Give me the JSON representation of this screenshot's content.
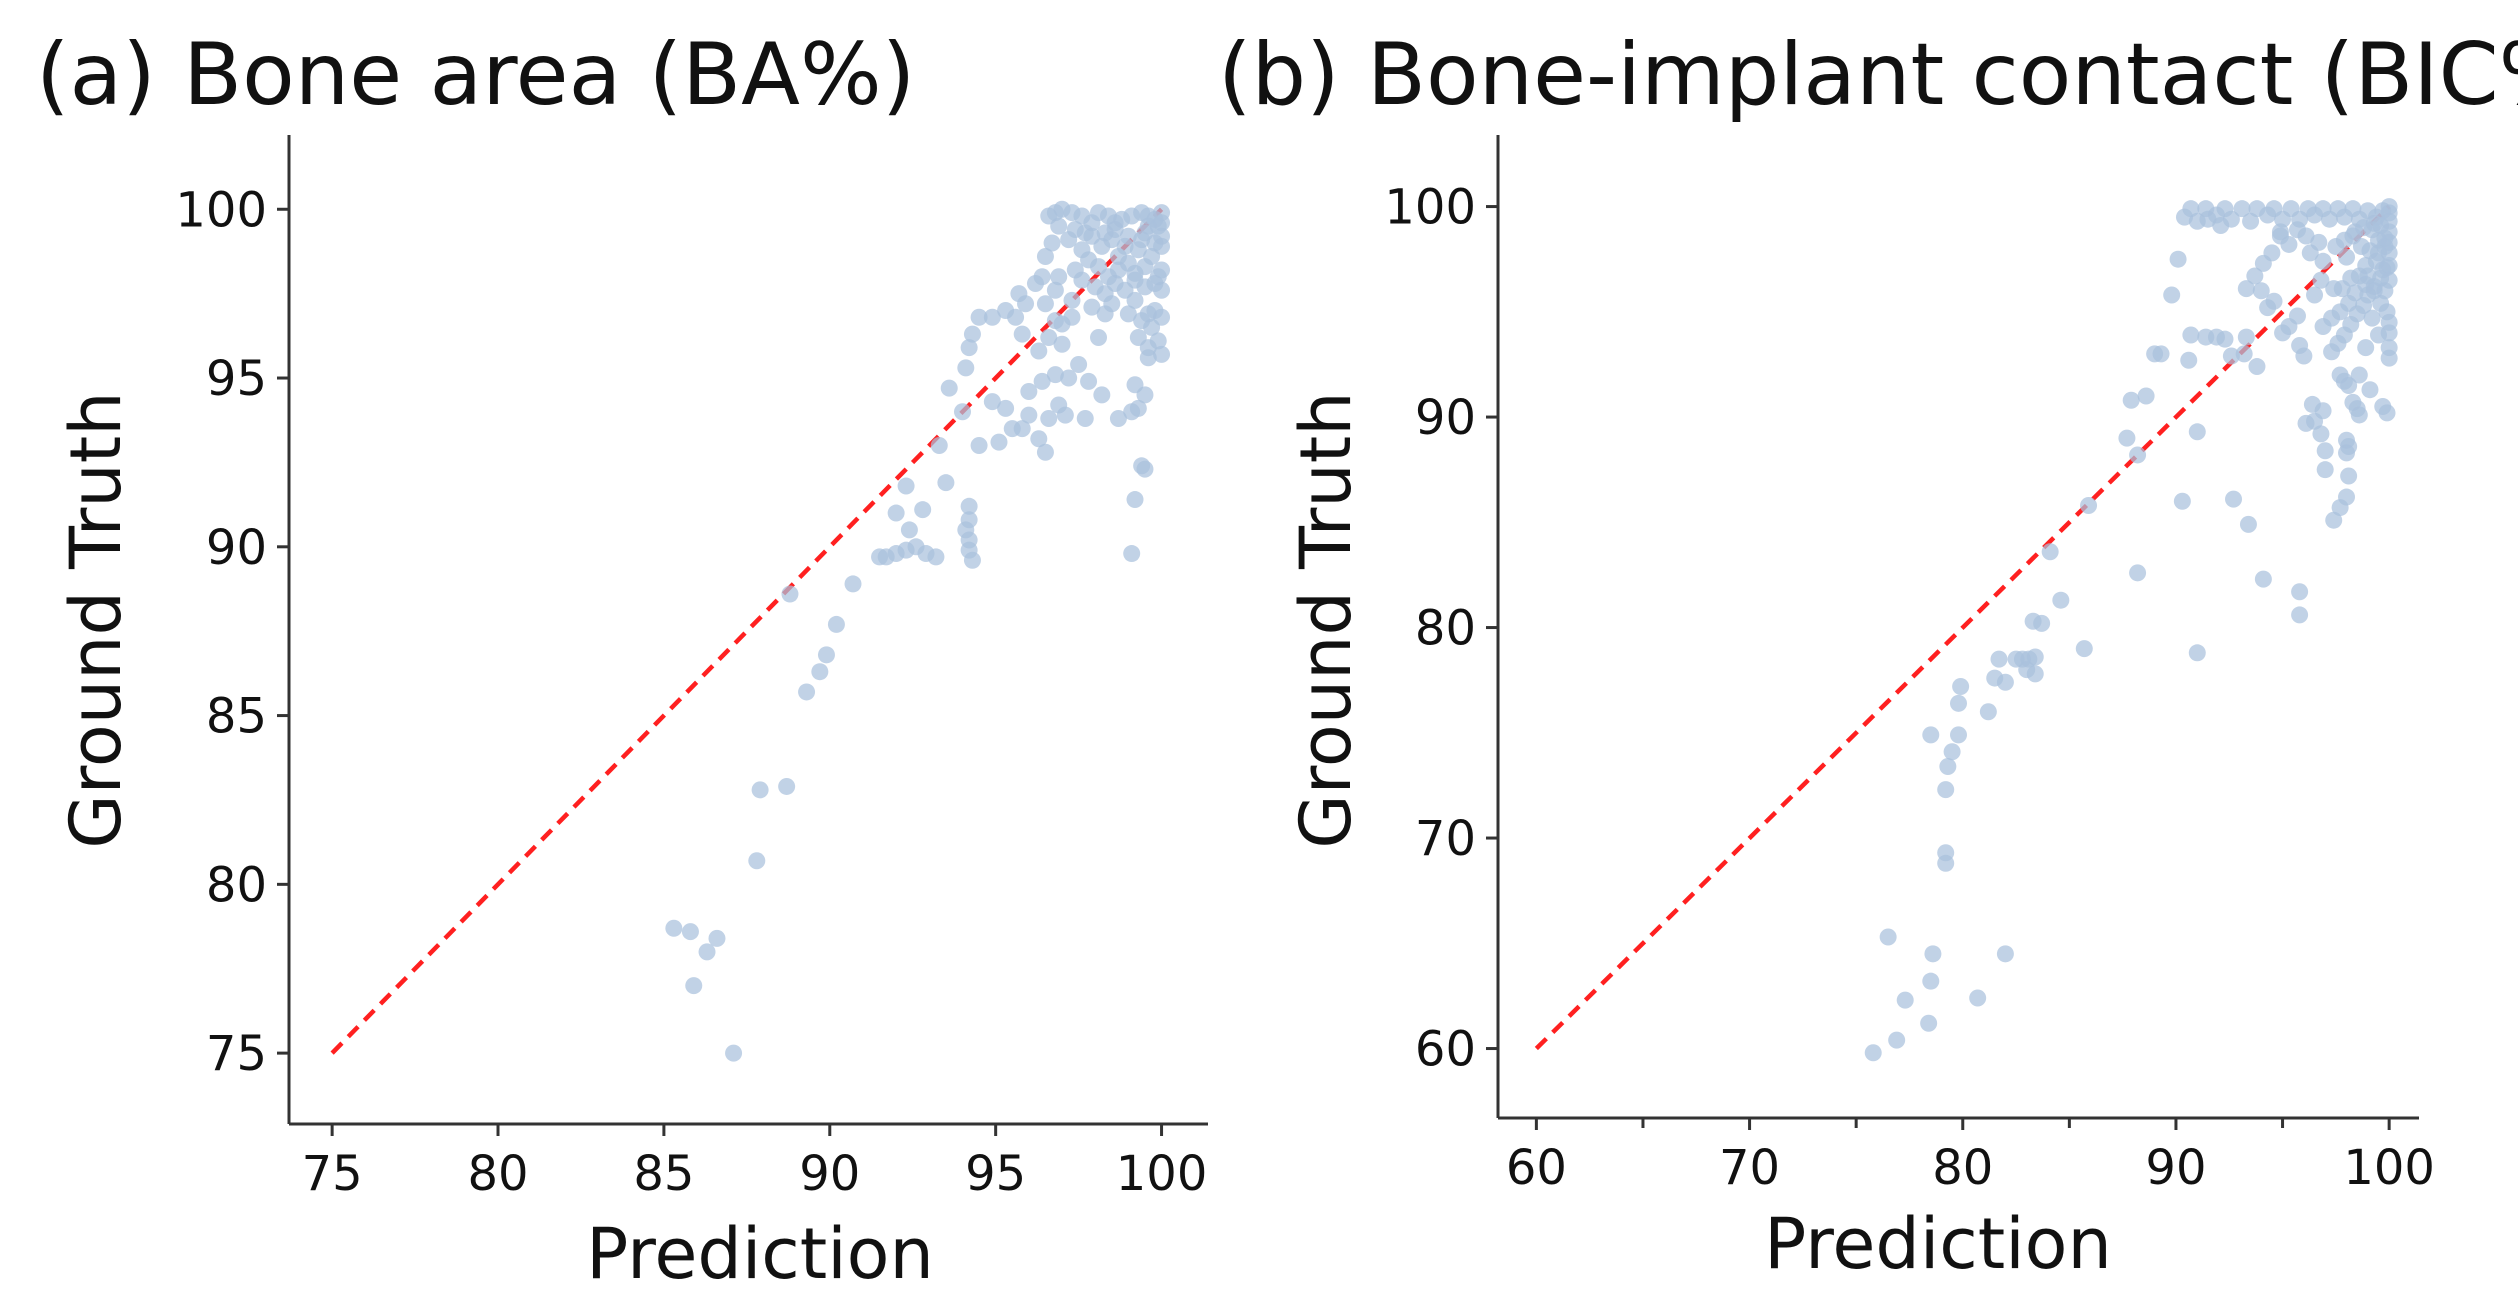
{
  "chart_data": [
    {
      "type": "scatter",
      "title": "(a) Bone area (BA%)",
      "xlabel": "Prediction",
      "ylabel": "Ground Truth",
      "xlim": [
        73.7,
        101.4
      ],
      "ylim": [
        72.9,
        102.2
      ],
      "xticks": [
        75,
        80,
        85,
        90,
        95,
        100
      ],
      "yticks": [
        75,
        80,
        85,
        90,
        95,
        100
      ],
      "reference_line": {
        "from": [
          75,
          75
        ],
        "to": [
          100,
          100
        ],
        "style": "dashed",
        "color": "#ff2020"
      },
      "point_color": "#a9c1dd",
      "points": [
        [
          85.3,
          78.7
        ],
        [
          85.8,
          78.6
        ],
        [
          86.3,
          78.0
        ],
        [
          86.6,
          78.4
        ],
        [
          85.9,
          77.0
        ],
        [
          87.1,
          75.0
        ],
        [
          87.8,
          80.7
        ],
        [
          87.9,
          82.8
        ],
        [
          88.7,
          82.9
        ],
        [
          88.8,
          88.6
        ],
        [
          89.3,
          85.7
        ],
        [
          89.7,
          86.3
        ],
        [
          89.9,
          86.8
        ],
        [
          90.2,
          87.7
        ],
        [
          90.7,
          88.9
        ],
        [
          91.5,
          89.7
        ],
        [
          91.7,
          89.7
        ],
        [
          92.0,
          89.8
        ],
        [
          92.3,
          89.9
        ],
        [
          92.6,
          90.0
        ],
        [
          92.9,
          89.8
        ],
        [
          93.2,
          89.7
        ],
        [
          92.4,
          90.5
        ],
        [
          92.0,
          91.0
        ],
        [
          92.3,
          91.8
        ],
        [
          92.8,
          91.1
        ],
        [
          93.5,
          91.9
        ],
        [
          93.3,
          93.0
        ],
        [
          93.6,
          94.7
        ],
        [
          94.0,
          94.0
        ],
        [
          94.1,
          95.3
        ],
        [
          94.2,
          95.9
        ],
        [
          94.3,
          96.3
        ],
        [
          94.5,
          93.0
        ],
        [
          94.2,
          90.8
        ],
        [
          94.1,
          90.5
        ],
        [
          94.2,
          90.2
        ],
        [
          94.2,
          89.9
        ],
        [
          94.3,
          89.6
        ],
        [
          94.2,
          91.2
        ],
        [
          94.9,
          94.3
        ],
        [
          95.1,
          93.1
        ],
        [
          95.3,
          94.1
        ],
        [
          95.5,
          93.5
        ],
        [
          95.8,
          93.5
        ],
        [
          96.0,
          93.9
        ],
        [
          96.3,
          93.2
        ],
        [
          96.5,
          92.8
        ],
        [
          96.0,
          94.6
        ],
        [
          96.4,
          94.9
        ],
        [
          96.8,
          95.1
        ],
        [
          96.9,
          94.2
        ],
        [
          96.6,
          93.8
        ],
        [
          97.1,
          93.9
        ],
        [
          97.7,
          93.8
        ],
        [
          98.2,
          94.5
        ],
        [
          98.7,
          93.8
        ],
        [
          99.1,
          94.0
        ],
        [
          99.3,
          94.1
        ],
        [
          99.2,
          94.8
        ],
        [
          99.5,
          94.5
        ],
        [
          99.6,
          95.6
        ],
        [
          99.4,
          92.4
        ],
        [
          99.5,
          92.3
        ],
        [
          99.2,
          91.4
        ],
        [
          99.1,
          89.8
        ],
        [
          94.5,
          96.8
        ],
        [
          94.9,
          96.8
        ],
        [
          95.3,
          97.0
        ],
        [
          95.6,
          96.8
        ],
        [
          95.7,
          97.5
        ],
        [
          95.9,
          97.2
        ],
        [
          96.2,
          97.8
        ],
        [
          96.4,
          98.0
        ],
        [
          96.5,
          97.2
        ],
        [
          96.8,
          96.7
        ],
        [
          96.6,
          96.2
        ],
        [
          95.8,
          96.3
        ],
        [
          96.3,
          95.8
        ],
        [
          97.0,
          96.0
        ],
        [
          97.0,
          96.6
        ],
        [
          97.3,
          96.8
        ],
        [
          97.3,
          97.3
        ],
        [
          96.8,
          97.6
        ],
        [
          96.9,
          98.0
        ],
        [
          96.5,
          98.6
        ],
        [
          96.7,
          99.0
        ],
        [
          96.9,
          99.5
        ],
        [
          96.6,
          99.8
        ],
        [
          96.8,
          99.9
        ],
        [
          97.0,
          100.0
        ],
        [
          97.3,
          99.9
        ],
        [
          97.6,
          99.8
        ],
        [
          97.4,
          99.4
        ],
        [
          97.9,
          99.6
        ],
        [
          98.1,
          99.9
        ],
        [
          98.4,
          99.8
        ],
        [
          98.6,
          99.4
        ],
        [
          98.8,
          99.7
        ],
        [
          99.1,
          99.8
        ],
        [
          99.4,
          99.9
        ],
        [
          99.6,
          99.8
        ],
        [
          99.8,
          99.7
        ],
        [
          100.0,
          99.6
        ],
        [
          97.2,
          99.1
        ],
        [
          97.6,
          98.8
        ],
        [
          97.9,
          99.2
        ],
        [
          98.2,
          98.9
        ],
        [
          98.5,
          99.1
        ],
        [
          98.7,
          98.6
        ],
        [
          99.0,
          99.2
        ],
        [
          99.3,
          98.8
        ],
        [
          99.5,
          99.3
        ],
        [
          99.8,
          99.0
        ],
        [
          100.0,
          98.9
        ],
        [
          97.4,
          98.2
        ],
        [
          97.8,
          98.5
        ],
        [
          98.1,
          98.3
        ],
        [
          98.4,
          98.0
        ],
        [
          98.7,
          98.2
        ],
        [
          99.0,
          98.4
        ],
        [
          99.2,
          98.1
        ],
        [
          99.5,
          98.3
        ],
        [
          99.7,
          98.6
        ],
        [
          100.0,
          98.2
        ],
        [
          99.9,
          98.0
        ],
        [
          97.6,
          97.9
        ],
        [
          98.0,
          97.7
        ],
        [
          98.3,
          97.5
        ],
        [
          98.6,
          97.8
        ],
        [
          98.9,
          97.6
        ],
        [
          99.2,
          97.9
        ],
        [
          99.5,
          97.7
        ],
        [
          99.8,
          97.8
        ],
        [
          100.0,
          97.6
        ],
        [
          97.9,
          97.1
        ],
        [
          98.3,
          96.9
        ],
        [
          98.5,
          97.2
        ],
        [
          99.0,
          96.9
        ],
        [
          99.2,
          97.3
        ],
        [
          99.4,
          96.7
        ],
        [
          99.6,
          96.9
        ],
        [
          99.8,
          97.0
        ],
        [
          100.0,
          96.8
        ],
        [
          99.3,
          96.2
        ],
        [
          99.6,
          95.9
        ],
        [
          99.9,
          96.1
        ],
        [
          100.0,
          95.7
        ],
        [
          99.7,
          96.5
        ],
        [
          98.1,
          96.2
        ],
        [
          97.5,
          95.4
        ],
        [
          97.8,
          94.9
        ],
        [
          97.2,
          95.0
        ],
        [
          100.0,
          99.9
        ],
        [
          99.9,
          99.5
        ],
        [
          100.0,
          99.2
        ],
        [
          99.6,
          99.5
        ],
        [
          99.4,
          99.1
        ],
        [
          98.9,
          98.9
        ],
        [
          98.6,
          99.6
        ],
        [
          98.3,
          99.3
        ],
        [
          97.7,
          99.3
        ]
      ]
    },
    {
      "type": "scatter",
      "title": "(b) Bone-implant contact (BIC%)",
      "xlabel": "Prediction",
      "ylabel": "Ground Truth",
      "xlim": [
        58.2,
        101.4
      ],
      "ylim": [
        56.7,
        103.4
      ],
      "xticks": [
        60,
        70,
        80,
        90,
        100
      ],
      "yticks": [
        60,
        70,
        80,
        90,
        100
      ],
      "minor_xticks": [
        65,
        75,
        85,
        95
      ],
      "reference_line": {
        "from": [
          60,
          60
        ],
        "to": [
          100,
          100
        ],
        "style": "dashed",
        "color": "#ff2020"
      },
      "point_color": "#a9c1dd",
      "points": [
        [
          75.8,
          59.8
        ],
        [
          76.9,
          60.4
        ],
        [
          77.3,
          62.3
        ],
        [
          78.4,
          61.2
        ],
        [
          78.5,
          63.2
        ],
        [
          78.6,
          64.5
        ],
        [
          76.5,
          65.3
        ],
        [
          80.7,
          62.4
        ],
        [
          82.0,
          64.5
        ],
        [
          79.2,
          68.8
        ],
        [
          79.2,
          69.3
        ],
        [
          79.2,
          72.3
        ],
        [
          79.3,
          73.4
        ],
        [
          78.5,
          74.9
        ],
        [
          79.5,
          74.1
        ],
        [
          79.8,
          74.9
        ],
        [
          79.8,
          76.4
        ],
        [
          79.9,
          77.2
        ],
        [
          81.2,
          76.0
        ],
        [
          81.5,
          77.6
        ],
        [
          81.7,
          78.5
        ],
        [
          82.0,
          77.4
        ],
        [
          82.5,
          78.5
        ],
        [
          82.8,
          78.5
        ],
        [
          83.1,
          78.5
        ],
        [
          83.4,
          78.6
        ],
        [
          83.0,
          78.0
        ],
        [
          83.4,
          77.8
        ],
        [
          83.3,
          80.3
        ],
        [
          83.7,
          80.2
        ],
        [
          84.1,
          83.6
        ],
        [
          84.6,
          81.3
        ],
        [
          85.7,
          79.0
        ],
        [
          85.9,
          85.8
        ],
        [
          87.7,
          89.0
        ],
        [
          87.9,
          90.8
        ],
        [
          88.2,
          88.2
        ],
        [
          88.6,
          91.0
        ],
        [
          88.2,
          82.6
        ],
        [
          89.0,
          93.0
        ],
        [
          89.3,
          93.0
        ],
        [
          89.8,
          95.8
        ],
        [
          90.1,
          97.5
        ],
        [
          90.3,
          86.0
        ],
        [
          90.6,
          92.7
        ],
        [
          90.7,
          93.9
        ],
        [
          91.0,
          89.3
        ],
        [
          91.0,
          78.8
        ],
        [
          91.4,
          93.8
        ],
        [
          91.9,
          93.8
        ],
        [
          92.3,
          93.7
        ],
        [
          92.6,
          92.9
        ],
        [
          92.7,
          86.1
        ],
        [
          93.2,
          93.0
        ],
        [
          93.3,
          93.8
        ],
        [
          93.4,
          84.9
        ],
        [
          93.8,
          92.4
        ],
        [
          94.1,
          82.3
        ],
        [
          94.3,
          95.2
        ],
        [
          94.0,
          96.0
        ],
        [
          94.6,
          95.5
        ],
        [
          95.0,
          94.0
        ],
        [
          95.3,
          94.3
        ],
        [
          95.7,
          94.8
        ],
        [
          95.8,
          93.4
        ],
        [
          96.0,
          92.9
        ],
        [
          95.8,
          81.7
        ],
        [
          95.8,
          80.6
        ],
        [
          96.1,
          89.7
        ],
        [
          96.4,
          90.6
        ],
        [
          96.5,
          89.8
        ],
        [
          96.9,
          90.3
        ],
        [
          96.8,
          89.2
        ],
        [
          97.0,
          88.4
        ],
        [
          97.0,
          87.5
        ],
        [
          97.4,
          85.1
        ],
        [
          97.7,
          85.7
        ],
        [
          98.0,
          88.9
        ],
        [
          98.0,
          88.3
        ],
        [
          98.1,
          88.6
        ],
        [
          98.1,
          87.2
        ],
        [
          98.0,
          86.2
        ],
        [
          98.3,
          90.7
        ],
        [
          98.5,
          90.4
        ],
        [
          97.7,
          92.0
        ],
        [
          97.9,
          91.7
        ],
        [
          98.1,
          91.5
        ],
        [
          98.6,
          92.0
        ],
        [
          97.3,
          93.1
        ],
        [
          97.6,
          93.5
        ],
        [
          97.9,
          93.9
        ],
        [
          98.2,
          94.4
        ],
        [
          98.5,
          94.9
        ],
        [
          98.8,
          95.3
        ],
        [
          99.0,
          95.8
        ],
        [
          99.3,
          96.2
        ],
        [
          99.6,
          96.6
        ],
        [
          99.9,
          97.1
        ],
        [
          100.0,
          97.8
        ],
        [
          100.0,
          98.3
        ],
        [
          100.0,
          98.8
        ],
        [
          100.0,
          99.3
        ],
        [
          100.0,
          99.7
        ],
        [
          100.0,
          100.0
        ],
        [
          99.7,
          99.8
        ],
        [
          99.4,
          99.5
        ],
        [
          99.0,
          99.8
        ],
        [
          98.6,
          99.4
        ],
        [
          98.3,
          99.9
        ],
        [
          97.9,
          99.5
        ],
        [
          97.6,
          99.9
        ],
        [
          97.2,
          99.4
        ],
        [
          96.9,
          99.9
        ],
        [
          96.5,
          99.6
        ],
        [
          96.2,
          99.9
        ],
        [
          95.8,
          99.4
        ],
        [
          95.4,
          99.9
        ],
        [
          95.0,
          99.4
        ],
        [
          94.6,
          99.9
        ],
        [
          94.3,
          99.6
        ],
        [
          93.8,
          99.9
        ],
        [
          93.5,
          99.3
        ],
        [
          93.1,
          99.9
        ],
        [
          92.6,
          99.4
        ],
        [
          92.3,
          99.9
        ],
        [
          91.9,
          99.6
        ],
        [
          91.4,
          99.9
        ],
        [
          91.0,
          99.3
        ],
        [
          90.7,
          99.9
        ],
        [
          90.4,
          99.5
        ],
        [
          99.2,
          98.9
        ],
        [
          99.5,
          98.4
        ],
        [
          99.8,
          98.1
        ],
        [
          99.1,
          97.9
        ],
        [
          99.4,
          97.4
        ],
        [
          99.7,
          97.0
        ],
        [
          98.9,
          97.2
        ],
        [
          98.6,
          96.7
        ],
        [
          98.9,
          96.3
        ],
        [
          98.2,
          96.6
        ],
        [
          97.8,
          96.1
        ],
        [
          98.4,
          95.9
        ],
        [
          98.1,
          95.4
        ],
        [
          97.7,
          95.0
        ],
        [
          97.3,
          94.7
        ],
        [
          96.9,
          94.3
        ],
        [
          97.4,
          96.1
        ],
        [
          96.8,
          96.5
        ],
        [
          96.5,
          95.8
        ],
        [
          96.9,
          97.4
        ],
        [
          96.3,
          97.8
        ],
        [
          96.7,
          98.3
        ],
        [
          96.1,
          98.6
        ],
        [
          95.7,
          98.9
        ],
        [
          95.3,
          98.2
        ],
        [
          94.9,
          98.6
        ],
        [
          94.5,
          97.8
        ],
        [
          94.1,
          97.3
        ],
        [
          93.7,
          96.7
        ],
        [
          93.3,
          96.1
        ],
        [
          97.5,
          98.1
        ],
        [
          98.0,
          97.6
        ],
        [
          98.3,
          98.6
        ],
        [
          98.7,
          98.1
        ],
        [
          99.0,
          96.7
        ],
        [
          99.3,
          96.0
        ],
        [
          99.6,
          95.4
        ],
        [
          99.9,
          95.0
        ],
        [
          100.0,
          94.5
        ],
        [
          100.0,
          94.0
        ],
        [
          100.0,
          93.3
        ],
        [
          100.0,
          92.8
        ],
        [
          99.8,
          96.0
        ],
        [
          100.0,
          96.5
        ],
        [
          100.0,
          97.2
        ],
        [
          99.5,
          97.8
        ],
        [
          99.8,
          98.5
        ],
        [
          99.6,
          99.1
        ],
        [
          99.3,
          99.2
        ],
        [
          98.8,
          99.0
        ],
        [
          98.4,
          98.8
        ],
        [
          97.9,
          98.4
        ],
        [
          99.2,
          94.7
        ],
        [
          99.5,
          93.9
        ],
        [
          98.9,
          93.3
        ],
        [
          98.6,
          90.1
        ],
        [
          99.7,
          90.5
        ],
        [
          99.1,
          91.3
        ],
        [
          99.9,
          90.2
        ],
        [
          91.5,
          99.4
        ],
        [
          92.1,
          99.1
        ],
        [
          94.9,
          98.8
        ]
      ]
    }
  ]
}
